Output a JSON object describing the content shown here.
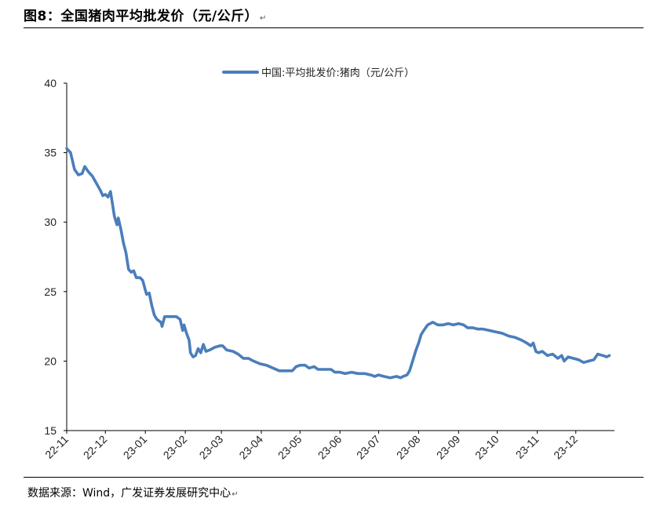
{
  "figure": {
    "title": "图8：全国猪肉平均批发价（元/公斤）",
    "source": "数据来源：Wind，广发证券发展研究中心"
  },
  "colors": {
    "series": "#4a7ebb",
    "axis": "#000000",
    "rule": "#000000"
  },
  "chart_data": {
    "type": "line",
    "title": "",
    "xlabel": "",
    "ylabel": "",
    "ylim": [
      15,
      40
    ],
    "yticks": [
      15,
      20,
      25,
      30,
      35,
      40
    ],
    "xlim": [
      "2022-11-01",
      "2023-12-31"
    ],
    "xticks": [
      {
        "label": "22-11",
        "date": "2022-11-01"
      },
      {
        "label": "22-12",
        "date": "2022-12-01"
      },
      {
        "label": "23-01",
        "date": "2023-01-01"
      },
      {
        "label": "23-02",
        "date": "2023-02-01"
      },
      {
        "label": "23-03",
        "date": "2023-03-01"
      },
      {
        "label": "23-04",
        "date": "2023-04-01"
      },
      {
        "label": "23-05",
        "date": "2023-05-01"
      },
      {
        "label": "23-06",
        "date": "2023-06-01"
      },
      {
        "label": "23-07",
        "date": "2023-07-01"
      },
      {
        "label": "23-08",
        "date": "2023-08-01"
      },
      {
        "label": "23-09",
        "date": "2023-09-01"
      },
      {
        "label": "23-10",
        "date": "2023-10-01"
      },
      {
        "label": "23-11",
        "date": "2023-11-01"
      },
      {
        "label": "23-12",
        "date": "2023-12-01"
      }
    ],
    "grid": false,
    "legend_position": "top-center",
    "series": [
      {
        "name": "中国:平均批发价:猪肉（元/公斤）",
        "points": [
          [
            "2022-11-01",
            35.3
          ],
          [
            "2022-11-04",
            35.0
          ],
          [
            "2022-11-07",
            33.8
          ],
          [
            "2022-11-10",
            33.4
          ],
          [
            "2022-11-13",
            33.5
          ],
          [
            "2022-11-15",
            34.0
          ],
          [
            "2022-11-18",
            33.6
          ],
          [
            "2022-11-21",
            33.3
          ],
          [
            "2022-11-24",
            32.8
          ],
          [
            "2022-11-27",
            32.3
          ],
          [
            "2022-11-29",
            31.9
          ],
          [
            "2022-12-01",
            32.0
          ],
          [
            "2022-12-03",
            31.8
          ],
          [
            "2022-12-05",
            32.2
          ],
          [
            "2022-12-06",
            31.6
          ],
          [
            "2022-12-08",
            30.4
          ],
          [
            "2022-12-10",
            29.8
          ],
          [
            "2022-12-11",
            30.3
          ],
          [
            "2022-12-13",
            29.5
          ],
          [
            "2022-12-15",
            28.5
          ],
          [
            "2022-12-17",
            27.8
          ],
          [
            "2022-12-19",
            26.6
          ],
          [
            "2022-12-21",
            26.4
          ],
          [
            "2022-12-23",
            26.5
          ],
          [
            "2022-12-25",
            26.0
          ],
          [
            "2022-12-28",
            26.0
          ],
          [
            "2022-12-30",
            25.8
          ],
          [
            "2023-01-01",
            25.1
          ],
          [
            "2023-01-02",
            24.8
          ],
          [
            "2023-01-04",
            24.9
          ],
          [
            "2023-01-06",
            24.0
          ],
          [
            "2023-01-08",
            23.3
          ],
          [
            "2023-01-10",
            23.0
          ],
          [
            "2023-01-13",
            22.8
          ],
          [
            "2023-01-14",
            22.5
          ],
          [
            "2023-01-16",
            23.2
          ],
          [
            "2023-01-20",
            23.2
          ],
          [
            "2023-01-25",
            23.2
          ],
          [
            "2023-01-28",
            23.0
          ],
          [
            "2023-01-30",
            22.2
          ],
          [
            "2023-01-31",
            22.6
          ],
          [
            "2023-02-02",
            22.0
          ],
          [
            "2023-02-04",
            21.5
          ],
          [
            "2023-02-05",
            20.6
          ],
          [
            "2023-02-07",
            20.3
          ],
          [
            "2023-02-09",
            20.4
          ],
          [
            "2023-02-11",
            20.9
          ],
          [
            "2023-02-13",
            20.6
          ],
          [
            "2023-02-15",
            21.2
          ],
          [
            "2023-02-17",
            20.7
          ],
          [
            "2023-02-20",
            20.8
          ],
          [
            "2023-02-24",
            21.0
          ],
          [
            "2023-02-28",
            21.1
          ],
          [
            "2023-03-02",
            21.1
          ],
          [
            "2023-03-05",
            20.8
          ],
          [
            "2023-03-10",
            20.7
          ],
          [
            "2023-03-14",
            20.5
          ],
          [
            "2023-03-18",
            20.2
          ],
          [
            "2023-03-22",
            20.2
          ],
          [
            "2023-03-26",
            20.0
          ],
          [
            "2023-03-31",
            19.8
          ],
          [
            "2023-04-05",
            19.7
          ],
          [
            "2023-04-10",
            19.5
          ],
          [
            "2023-04-15",
            19.3
          ],
          [
            "2023-04-20",
            19.3
          ],
          [
            "2023-04-25",
            19.3
          ],
          [
            "2023-04-28",
            19.6
          ],
          [
            "2023-05-01",
            19.7
          ],
          [
            "2023-05-05",
            19.7
          ],
          [
            "2023-05-08",
            19.5
          ],
          [
            "2023-05-12",
            19.6
          ],
          [
            "2023-05-15",
            19.4
          ],
          [
            "2023-05-20",
            19.4
          ],
          [
            "2023-05-25",
            19.4
          ],
          [
            "2023-05-28",
            19.2
          ],
          [
            "2023-06-01",
            19.2
          ],
          [
            "2023-06-05",
            19.1
          ],
          [
            "2023-06-10",
            19.2
          ],
          [
            "2023-06-15",
            19.1
          ],
          [
            "2023-06-20",
            19.1
          ],
          [
            "2023-06-25",
            19.0
          ],
          [
            "2023-06-28",
            18.9
          ],
          [
            "2023-07-01",
            19.0
          ],
          [
            "2023-07-05",
            18.9
          ],
          [
            "2023-07-10",
            18.8
          ],
          [
            "2023-07-15",
            18.9
          ],
          [
            "2023-07-18",
            18.8
          ],
          [
            "2023-07-20",
            18.9
          ],
          [
            "2023-07-23",
            19.0
          ],
          [
            "2023-07-25",
            19.3
          ],
          [
            "2023-07-27",
            19.9
          ],
          [
            "2023-07-30",
            20.8
          ],
          [
            "2023-08-01",
            21.3
          ],
          [
            "2023-08-03",
            21.9
          ],
          [
            "2023-08-05",
            22.2
          ],
          [
            "2023-08-08",
            22.6
          ],
          [
            "2023-08-12",
            22.8
          ],
          [
            "2023-08-16",
            22.6
          ],
          [
            "2023-08-20",
            22.6
          ],
          [
            "2023-08-24",
            22.7
          ],
          [
            "2023-08-28",
            22.6
          ],
          [
            "2023-09-01",
            22.7
          ],
          [
            "2023-09-05",
            22.6
          ],
          [
            "2023-09-08",
            22.4
          ],
          [
            "2023-09-12",
            22.4
          ],
          [
            "2023-09-16",
            22.3
          ],
          [
            "2023-09-20",
            22.3
          ],
          [
            "2023-09-25",
            22.2
          ],
          [
            "2023-09-30",
            22.1
          ],
          [
            "2023-10-05",
            22.0
          ],
          [
            "2023-10-10",
            21.8
          ],
          [
            "2023-10-15",
            21.7
          ],
          [
            "2023-10-20",
            21.5
          ],
          [
            "2023-10-24",
            21.3
          ],
          [
            "2023-10-27",
            21.1
          ],
          [
            "2023-10-29",
            21.3
          ],
          [
            "2023-10-31",
            20.7
          ],
          [
            "2023-11-02",
            20.6
          ],
          [
            "2023-11-05",
            20.7
          ],
          [
            "2023-11-09",
            20.4
          ],
          [
            "2023-11-13",
            20.5
          ],
          [
            "2023-11-17",
            20.2
          ],
          [
            "2023-11-20",
            20.4
          ],
          [
            "2023-11-22",
            20.0
          ],
          [
            "2023-11-25",
            20.3
          ],
          [
            "2023-11-29",
            20.2
          ],
          [
            "2023-12-03",
            20.1
          ],
          [
            "2023-12-07",
            19.9
          ],
          [
            "2023-12-11",
            20.0
          ],
          [
            "2023-12-15",
            20.1
          ],
          [
            "2023-12-18",
            20.5
          ],
          [
            "2023-12-22",
            20.4
          ],
          [
            "2023-12-25",
            20.3
          ],
          [
            "2023-12-27",
            20.4
          ]
        ]
      }
    ]
  }
}
